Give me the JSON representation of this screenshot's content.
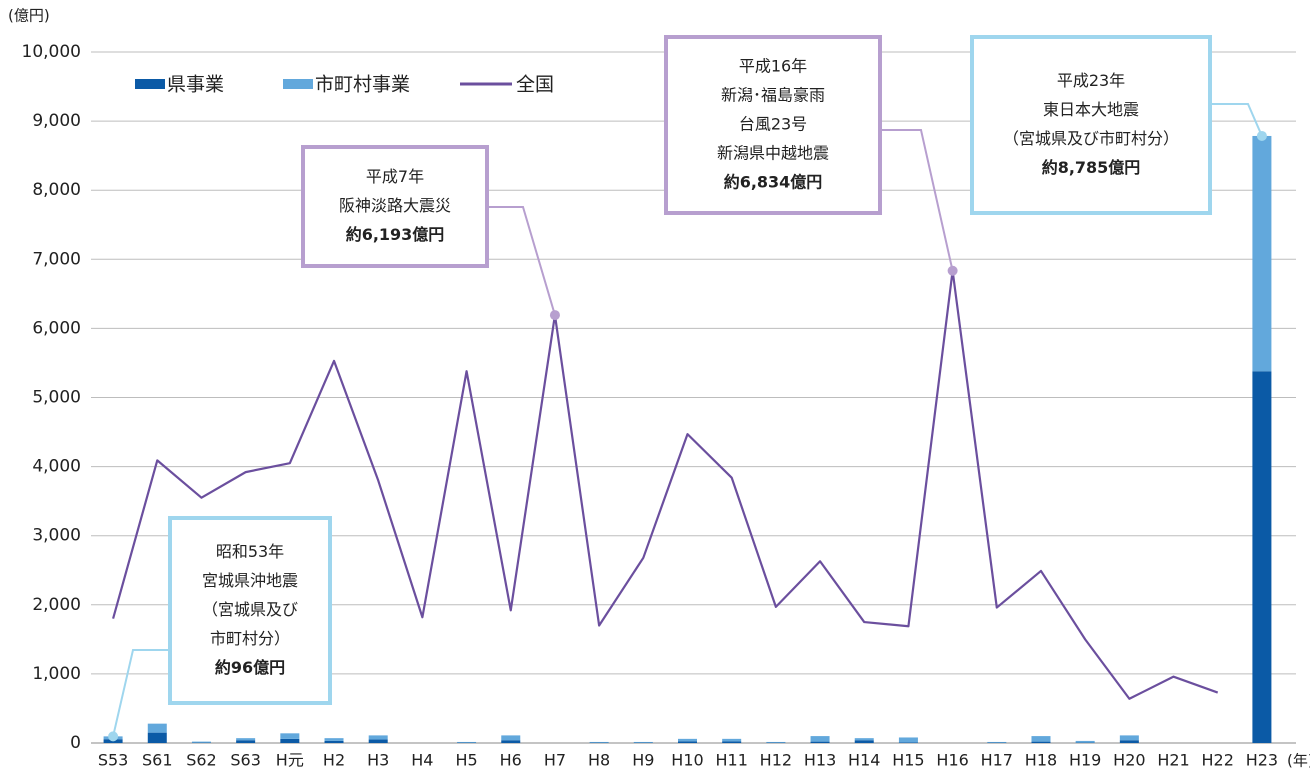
{
  "chart_data": {
    "type": "bar",
    "y_unit": "(億円)",
    "x_unit": "(年)",
    "categories": [
      "S53",
      "S61",
      "S62",
      "S63",
      "H元",
      "H2",
      "H3",
      "H4",
      "H5",
      "H6",
      "H7",
      "H8",
      "H9",
      "H10",
      "H11",
      "H12",
      "H13",
      "H14",
      "H15",
      "H16",
      "H17",
      "H18",
      "H19",
      "H20",
      "H21",
      "H22",
      "H23"
    ],
    "series": [
      {
        "name": "県事業",
        "color": "#0b5aa6",
        "values": [
          55,
          150,
          5,
          40,
          60,
          30,
          50,
          0,
          5,
          40,
          0,
          5,
          5,
          25,
          25,
          5,
          20,
          40,
          10,
          0,
          5,
          20,
          5,
          40,
          0,
          0,
          5380
        ]
      },
      {
        "name": "市町村事業",
        "color": "#62a8dc",
        "values": [
          41,
          130,
          15,
          30,
          80,
          40,
          60,
          0,
          10,
          70,
          0,
          10,
          10,
          35,
          35,
          10,
          80,
          30,
          70,
          0,
          10,
          80,
          25,
          70,
          0,
          0,
          3405
        ]
      },
      {
        "name": "全国",
        "type": "line",
        "color": "#6b4f9e",
        "values": [
          1800,
          4090,
          3550,
          3920,
          4050,
          5530,
          3800,
          1820,
          5380,
          1920,
          6193,
          1700,
          2680,
          4470,
          3840,
          1970,
          2630,
          1750,
          1690,
          6834,
          1960,
          2490,
          1500,
          640,
          960,
          730,
          null
        ]
      }
    ],
    "ylim": [
      0,
      10000
    ],
    "yticks": [
      0,
      {
        "value": 1000,
        "label": "1,000"
      },
      {
        "value": 2000,
        "label": "2,000"
      },
      {
        "value": 3000,
        "label": "3,000"
      },
      {
        "value": 4000,
        "label": "4,000"
      },
      {
        "value": 5000,
        "label": "5,000"
      },
      {
        "value": 6000,
        "label": "6,000"
      },
      {
        "value": 7000,
        "label": "7,000"
      },
      {
        "value": 8000,
        "label": "8,000"
      },
      {
        "value": 9000,
        "label": "9,000"
      },
      {
        "value": 10000,
        "label": "10,000"
      }
    ],
    "grid": true,
    "annotations": [
      {
        "lines": [
          "昭和53年",
          "宮城県沖地震",
          "（宮城県及び",
          "市町村分）"
        ],
        "amount": "約96億円"
      },
      {
        "lines": [
          "平成7年",
          "阪神淡路大震災"
        ],
        "amount": "約6,193億円"
      },
      {
        "lines": [
          "平成16年",
          "新潟･福島豪雨",
          "台風23号",
          "新潟県中越地震"
        ],
        "amount": "約6,834億円"
      },
      {
        "lines": [
          "平成23年",
          "東日本大地震",
          "（宮城県及び市町村分）"
        ],
        "amount": "約8,785億円"
      }
    ]
  }
}
